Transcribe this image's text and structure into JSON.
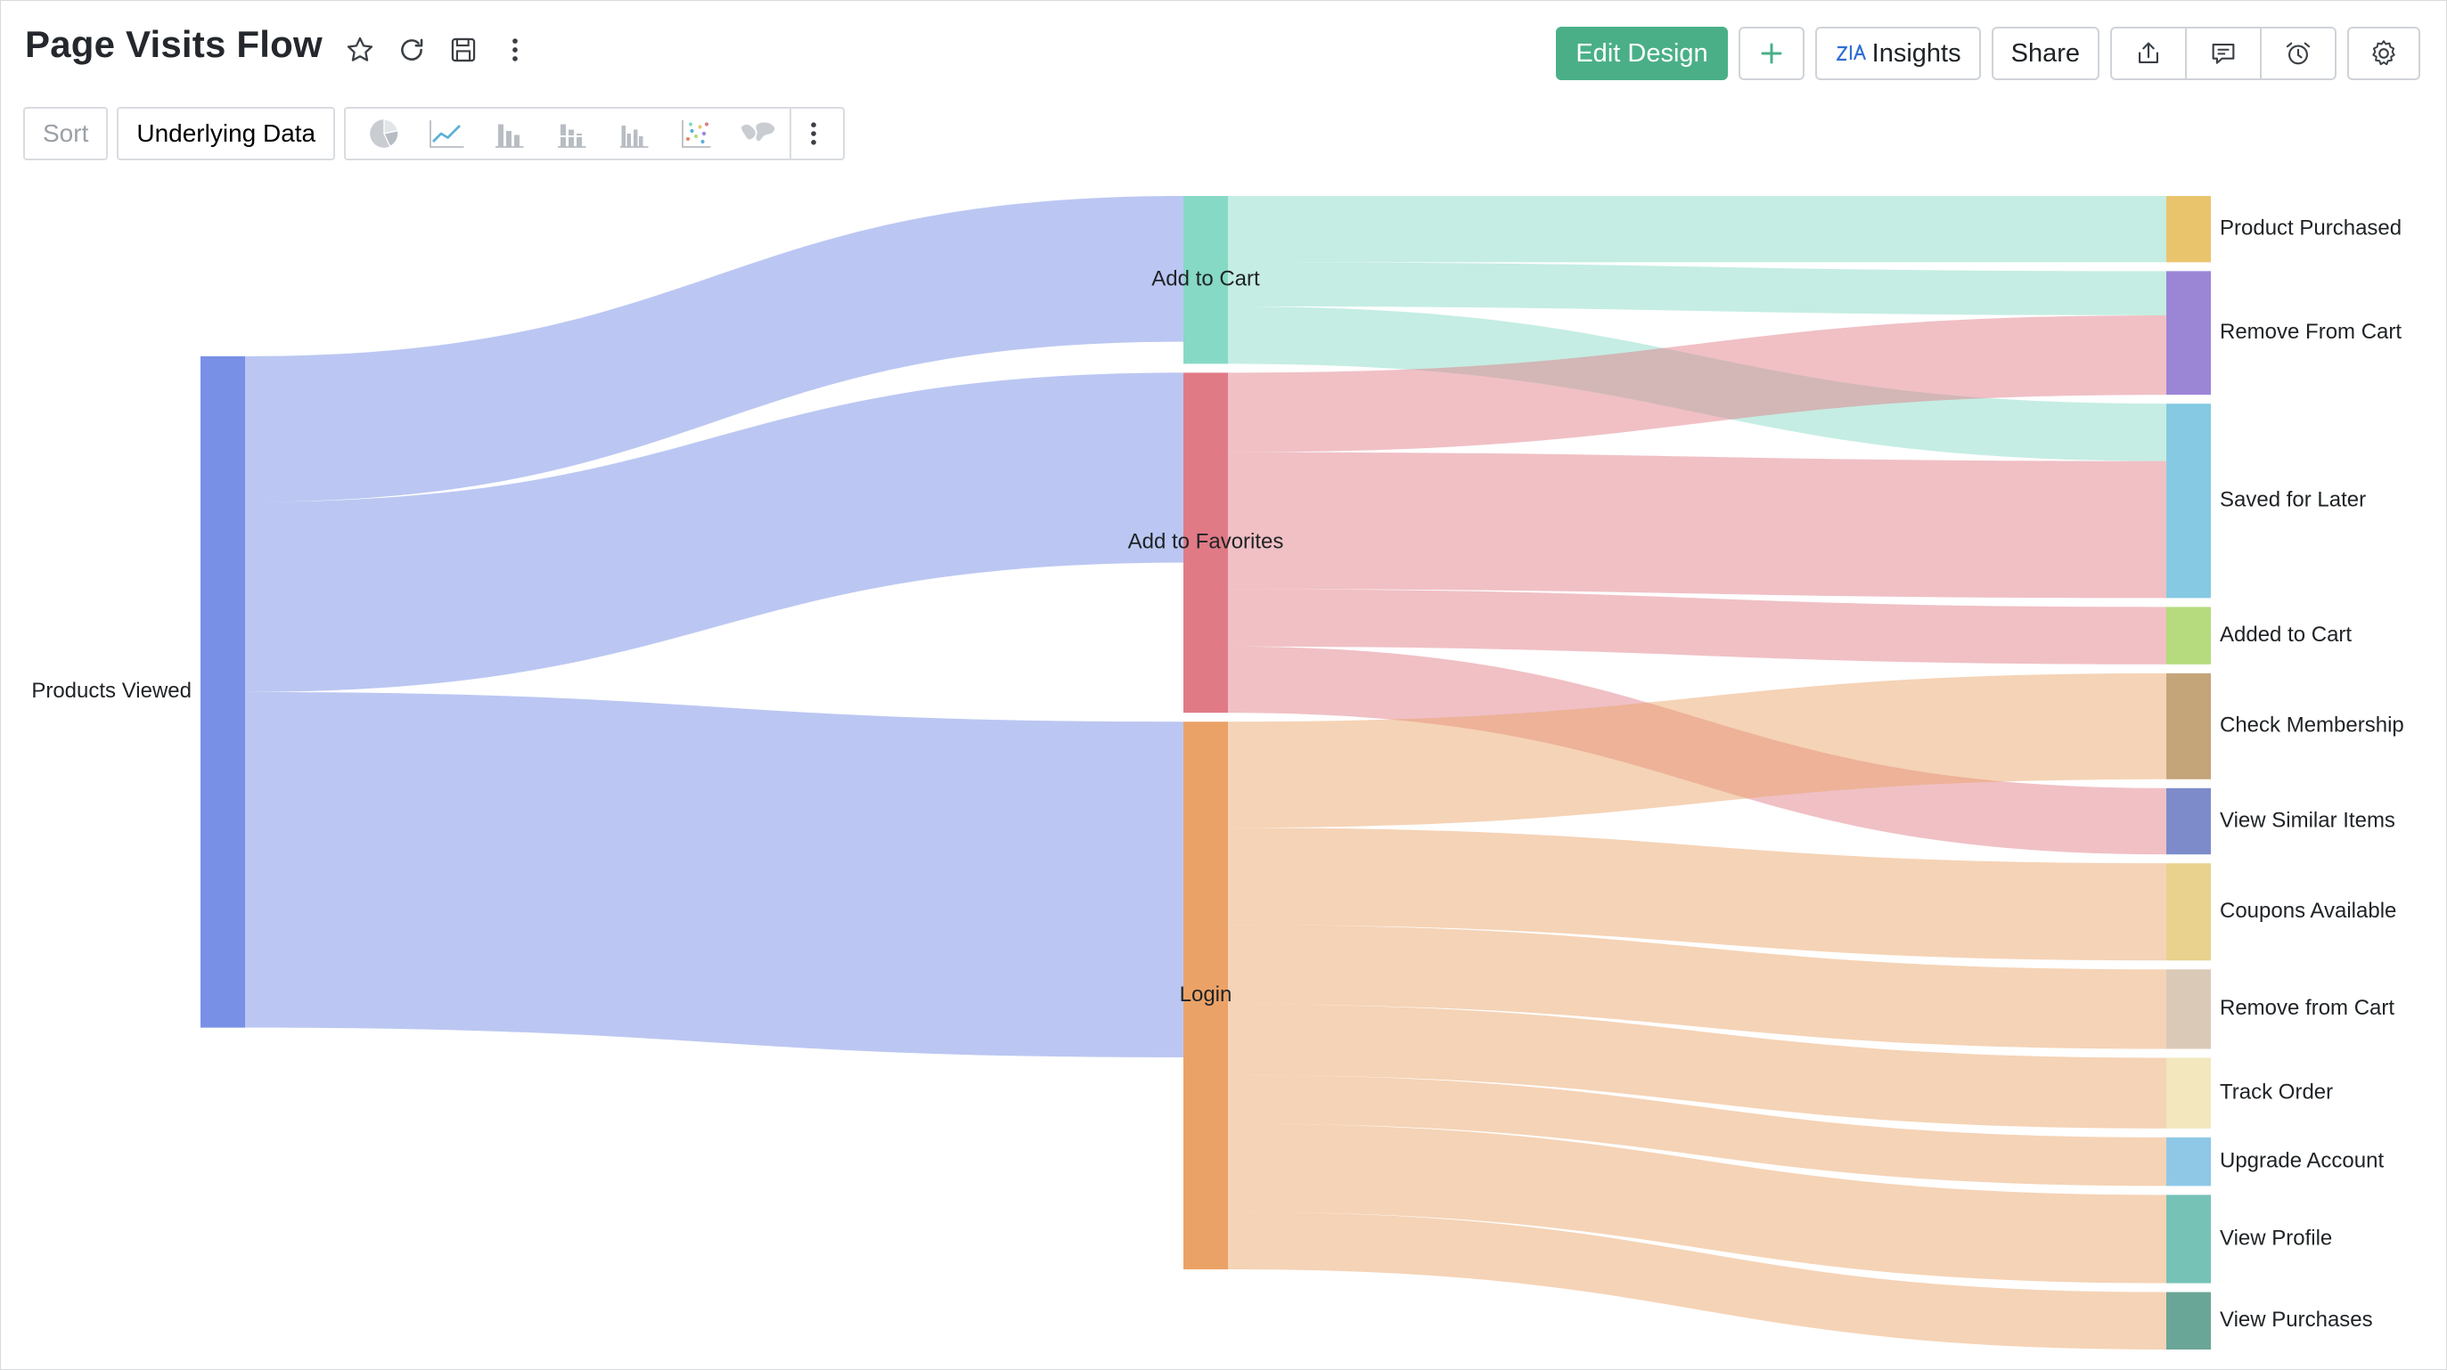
{
  "header": {
    "title": "Page Visits Flow"
  },
  "actions": {
    "edit_design": "Edit Design",
    "insights": "Insights",
    "share": "Share"
  },
  "toolbar": {
    "sort": "Sort",
    "underlying_data": "Underlying Data",
    "chart_type_icons": [
      "pie-chart-icon",
      "line-chart-icon",
      "bar-chart-icon",
      "stacked-bar-chart-icon",
      "grouped-bar-chart-icon",
      "scatter-chart-icon",
      "map-chart-icon"
    ]
  },
  "colors": {
    "accent": "#4aaf87"
  },
  "chart_data": {
    "type": "sankey",
    "title": "Page Visits Flow",
    "nodes": [
      {
        "name": "Products Viewed",
        "level": 0,
        "color": "#7890e6"
      },
      {
        "name": "Add to Cart",
        "level": 1,
        "color": "#86d9c5"
      },
      {
        "name": "Add to Favorites",
        "level": 1,
        "color": "#e07b86"
      },
      {
        "name": "Login",
        "level": 1,
        "color": "#eba267"
      },
      {
        "name": "Product Purchased",
        "level": 2,
        "color": "#eac46d"
      },
      {
        "name": "Remove From Cart",
        "level": 2,
        "color": "#9b86d6"
      },
      {
        "name": "Saved for Later",
        "level": 2,
        "color": "#86c9e3"
      },
      {
        "name": "Added to Cart",
        "level": 2,
        "color": "#b5db7e"
      },
      {
        "name": "Check Membership",
        "level": 2,
        "color": "#c4a57a"
      },
      {
        "name": "View Similar Items",
        "level": 2,
        "color": "#7e8bca"
      },
      {
        "name": "Coupons Available",
        "level": 2,
        "color": "#e8d28d"
      },
      {
        "name": "Remove from Cart",
        "level": 2,
        "color": "#dbc9b8"
      },
      {
        "name": "Track Order",
        "level": 2,
        "color": "#f2e7bd"
      },
      {
        "name": "Upgrade Account",
        "level": 2,
        "color": "#8fc8e6"
      },
      {
        "name": "View Profile",
        "level": 2,
        "color": "#76c2b6"
      },
      {
        "name": "View Purchases",
        "level": 2,
        "color": "#6aa697"
      }
    ],
    "links": [
      {
        "source": "Products Viewed",
        "target": "Add to Cart",
        "value": 33
      },
      {
        "source": "Products Viewed",
        "target": "Add to Favorites",
        "value": 43
      },
      {
        "source": "Products Viewed",
        "target": "Login",
        "value": 76
      },
      {
        "source": "Add to Cart",
        "target": "Product Purchased",
        "value": 15
      },
      {
        "source": "Add to Cart",
        "target": "Remove From Cart",
        "value": 10
      },
      {
        "source": "Add to Cart",
        "target": "Saved for Later",
        "value": 13
      },
      {
        "source": "Add to Favorites",
        "target": "Remove From Cart",
        "value": 18
      },
      {
        "source": "Add to Favorites",
        "target": "Saved for Later",
        "value": 31
      },
      {
        "source": "Add to Favorites",
        "target": "Added to Cart",
        "value": 13
      },
      {
        "source": "Add to Favorites",
        "target": "View Similar Items",
        "value": 15
      },
      {
        "source": "Login",
        "target": "Check Membership",
        "value": 24
      },
      {
        "source": "Login",
        "target": "View Similar Items",
        "value": 0
      },
      {
        "source": "Login",
        "target": "Coupons Available",
        "value": 22
      },
      {
        "source": "Login",
        "target": "Remove from Cart",
        "value": 18
      },
      {
        "source": "Login",
        "target": "Track Order",
        "value": 16
      },
      {
        "source": "Login",
        "target": "Upgrade Account",
        "value": 11
      },
      {
        "source": "Login",
        "target": "View Profile",
        "value": 20
      },
      {
        "source": "Login",
        "target": "View Purchases",
        "value": 13
      }
    ]
  }
}
